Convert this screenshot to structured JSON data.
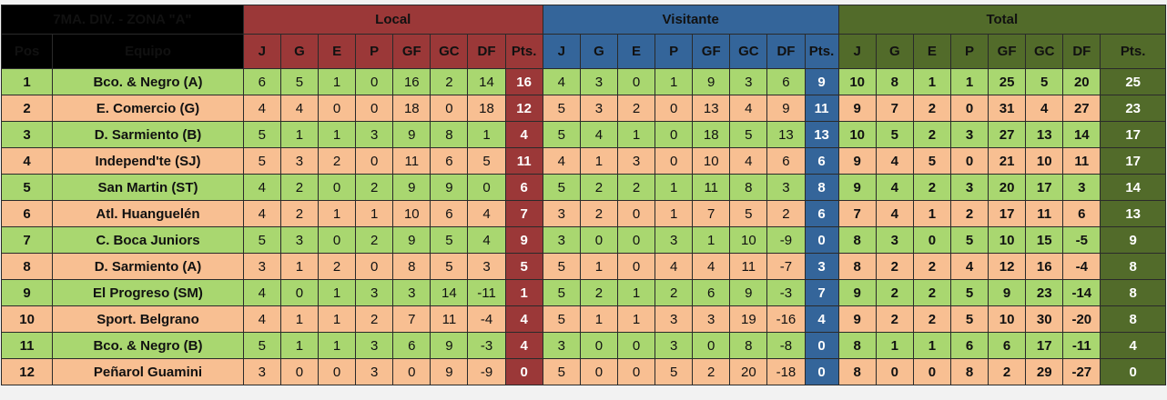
{
  "header": {
    "division_title": "7MA. DIV. - ZONA \"A\"",
    "local_label": "Local",
    "visitante_label": "Visitante",
    "total_label": "Total",
    "pos_label": "Pos",
    "team_label": "Equipo",
    "stat_cols": [
      "J",
      "G",
      "E",
      "P",
      "GF",
      "GC",
      "DF",
      "Pts."
    ]
  },
  "colors": {
    "local": "#9b3838",
    "visitante": "#34659a",
    "total": "#526b2a",
    "row_green": "#a9d770",
    "row_peach": "#f8bf92"
  },
  "rows": [
    {
      "pos": "1",
      "team": "Bco. & Negro (A)",
      "local": [
        "6",
        "5",
        "1",
        "0",
        "16",
        "2",
        "14",
        "16"
      ],
      "visit": [
        "4",
        "3",
        "0",
        "1",
        "9",
        "3",
        "6",
        "9"
      ],
      "total": [
        "10",
        "8",
        "1",
        "1",
        "25",
        "5",
        "20",
        "25"
      ]
    },
    {
      "pos": "2",
      "team": "E. Comercio (G)",
      "local": [
        "4",
        "4",
        "0",
        "0",
        "18",
        "0",
        "18",
        "12"
      ],
      "visit": [
        "5",
        "3",
        "2",
        "0",
        "13",
        "4",
        "9",
        "11"
      ],
      "total": [
        "9",
        "7",
        "2",
        "0",
        "31",
        "4",
        "27",
        "23"
      ]
    },
    {
      "pos": "3",
      "team": "D. Sarmiento (B)",
      "local": [
        "5",
        "1",
        "1",
        "3",
        "9",
        "8",
        "1",
        "4"
      ],
      "visit": [
        "5",
        "4",
        "1",
        "0",
        "18",
        "5",
        "13",
        "13"
      ],
      "total": [
        "10",
        "5",
        "2",
        "3",
        "27",
        "13",
        "14",
        "17"
      ]
    },
    {
      "pos": "4",
      "team": "Independ'te (SJ)",
      "local": [
        "5",
        "3",
        "2",
        "0",
        "11",
        "6",
        "5",
        "11"
      ],
      "visit": [
        "4",
        "1",
        "3",
        "0",
        "10",
        "4",
        "6",
        "6"
      ],
      "total": [
        "9",
        "4",
        "5",
        "0",
        "21",
        "10",
        "11",
        "17"
      ]
    },
    {
      "pos": "5",
      "team": "San Martin (ST)",
      "local": [
        "4",
        "2",
        "0",
        "2",
        "9",
        "9",
        "0",
        "6"
      ],
      "visit": [
        "5",
        "2",
        "2",
        "1",
        "11",
        "8",
        "3",
        "8"
      ],
      "total": [
        "9",
        "4",
        "2",
        "3",
        "20",
        "17",
        "3",
        "14"
      ]
    },
    {
      "pos": "6",
      "team": "Atl. Huanguelén",
      "local": [
        "4",
        "2",
        "1",
        "1",
        "10",
        "6",
        "4",
        "7"
      ],
      "visit": [
        "3",
        "2",
        "0",
        "1",
        "7",
        "5",
        "2",
        "6"
      ],
      "total": [
        "7",
        "4",
        "1",
        "2",
        "17",
        "11",
        "6",
        "13"
      ]
    },
    {
      "pos": "7",
      "team": "C. Boca Juniors",
      "local": [
        "5",
        "3",
        "0",
        "2",
        "9",
        "5",
        "4",
        "9"
      ],
      "visit": [
        "3",
        "0",
        "0",
        "3",
        "1",
        "10",
        "-9",
        "0"
      ],
      "total": [
        "8",
        "3",
        "0",
        "5",
        "10",
        "15",
        "-5",
        "9"
      ]
    },
    {
      "pos": "8",
      "team": "D. Sarmiento (A)",
      "local": [
        "3",
        "1",
        "2",
        "0",
        "8",
        "5",
        "3",
        "5"
      ],
      "visit": [
        "5",
        "1",
        "0",
        "4",
        "4",
        "11",
        "-7",
        "3"
      ],
      "total": [
        "8",
        "2",
        "2",
        "4",
        "12",
        "16",
        "-4",
        "8"
      ]
    },
    {
      "pos": "9",
      "team": "El Progreso (SM)",
      "local": [
        "4",
        "0",
        "1",
        "3",
        "3",
        "14",
        "-11",
        "1"
      ],
      "visit": [
        "5",
        "2",
        "1",
        "2",
        "6",
        "9",
        "-3",
        "7"
      ],
      "total": [
        "9",
        "2",
        "2",
        "5",
        "9",
        "23",
        "-14",
        "8"
      ]
    },
    {
      "pos": "10",
      "team": "Sport. Belgrano",
      "local": [
        "4",
        "1",
        "1",
        "2",
        "7",
        "11",
        "-4",
        "4"
      ],
      "visit": [
        "5",
        "1",
        "1",
        "3",
        "3",
        "19",
        "-16",
        "4"
      ],
      "total": [
        "9",
        "2",
        "2",
        "5",
        "10",
        "30",
        "-20",
        "8"
      ]
    },
    {
      "pos": "11",
      "team": "Bco. & Negro (B)",
      "local": [
        "5",
        "1",
        "1",
        "3",
        "6",
        "9",
        "-3",
        "4"
      ],
      "visit": [
        "3",
        "0",
        "0",
        "3",
        "0",
        "8",
        "-8",
        "0"
      ],
      "total": [
        "8",
        "1",
        "1",
        "6",
        "6",
        "17",
        "-11",
        "4"
      ]
    },
    {
      "pos": "12",
      "team": "Peñarol Guamini",
      "local": [
        "3",
        "0",
        "0",
        "3",
        "0",
        "9",
        "-9",
        "0"
      ],
      "visit": [
        "5",
        "0",
        "0",
        "5",
        "2",
        "20",
        "-18",
        "0"
      ],
      "total": [
        "8",
        "0",
        "0",
        "8",
        "2",
        "29",
        "-27",
        "0"
      ]
    }
  ]
}
